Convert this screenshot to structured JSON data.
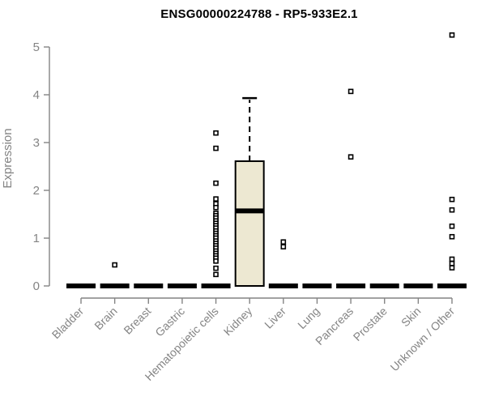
{
  "chart_data": {
    "type": "boxplot",
    "title": "ENSG00000224788 - RP5-933E2.1",
    "ylabel": "Expression",
    "xlabel": "",
    "ylim": [
      0,
      5
    ],
    "yticks": [
      0,
      1,
      2,
      3,
      4,
      5
    ],
    "grid": false,
    "legend": "none",
    "categories": [
      "Bladder",
      "Brain",
      "Breast",
      "Gastric",
      "Hematopoietic cells",
      "Kidney",
      "Liver",
      "Lung",
      "Pancreas",
      "Prostate",
      "Skin",
      "Unknown / Other"
    ],
    "boxes": [
      {
        "category": "Bladder",
        "whisker_low": 0,
        "q1": 0,
        "median": 0,
        "q3": 0,
        "whisker_high": 0,
        "outliers": []
      },
      {
        "category": "Brain",
        "whisker_low": 0,
        "q1": 0,
        "median": 0,
        "q3": 0,
        "whisker_high": 0,
        "outliers": [
          0.44
        ]
      },
      {
        "category": "Breast",
        "whisker_low": 0,
        "q1": 0,
        "median": 0,
        "q3": 0,
        "whisker_high": 0,
        "outliers": []
      },
      {
        "category": "Gastric",
        "whisker_low": 0,
        "q1": 0,
        "median": 0,
        "q3": 0,
        "whisker_high": 0,
        "outliers": []
      },
      {
        "category": "Hematopoietic cells",
        "whisker_low": 0,
        "q1": 0,
        "median": 0,
        "q3": 0,
        "whisker_high": 0,
        "outliers": [
          3.2,
          2.88,
          2.15,
          1.82,
          1.72,
          1.64,
          1.52,
          1.47,
          1.42,
          1.36,
          1.31,
          1.26,
          1.21,
          1.15,
          1.1,
          1.05,
          1.0,
          0.94,
          0.89,
          0.84,
          0.79,
          0.73,
          0.68,
          0.63,
          0.58,
          0.52,
          0.37,
          0.24
        ]
      },
      {
        "category": "Kidney",
        "whisker_low": 0,
        "q1": 0,
        "median": 1.57,
        "q3": 2.61,
        "whisker_high": 3.93,
        "outliers": []
      },
      {
        "category": "Liver",
        "whisker_low": 0,
        "q1": 0,
        "median": 0,
        "q3": 0,
        "whisker_high": 0,
        "outliers": [
          0.92,
          0.82
        ]
      },
      {
        "category": "Lung",
        "whisker_low": 0,
        "q1": 0,
        "median": 0,
        "q3": 0,
        "whisker_high": 0,
        "outliers": []
      },
      {
        "category": "Pancreas",
        "whisker_low": 0,
        "q1": 0,
        "median": 0,
        "q3": 0,
        "whisker_high": 0,
        "outliers": [
          4.07,
          2.7
        ]
      },
      {
        "category": "Prostate",
        "whisker_low": 0,
        "q1": 0,
        "median": 0,
        "q3": 0,
        "whisker_high": 0,
        "outliers": []
      },
      {
        "category": "Skin",
        "whisker_low": 0,
        "q1": 0,
        "median": 0,
        "q3": 0,
        "whisker_high": 0,
        "outliers": []
      },
      {
        "category": "Unknown / Other",
        "whisker_low": 0,
        "q1": 0,
        "median": 0,
        "q3": 0,
        "whisker_high": 0,
        "outliers": [
          5.25,
          1.81,
          1.59,
          1.25,
          1.03,
          0.56,
          0.47,
          0.38
        ]
      }
    ],
    "colors": {
      "box_fill": "#ede8d2",
      "box_stroke": "#000000",
      "median": "#000000",
      "whisker": "#000000",
      "outlier_fill": "#ffffff",
      "outlier_stroke": "#000000",
      "axis": "#848484",
      "tick_label": "#848484",
      "title": "#000000",
      "background": "#ffffff"
    }
  }
}
